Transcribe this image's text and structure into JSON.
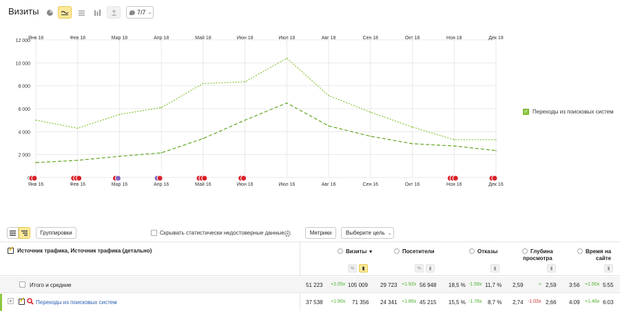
{
  "header": {
    "title": "Визиты",
    "dropdown_label": "7/7"
  },
  "chart_data": {
    "type": "line",
    "x_top": [
      "Янв 18",
      "Фев 18",
      "Мар 18",
      "Апр 18",
      "Май 18",
      "Июн 18",
      "Июл 18",
      "Авг 18",
      "Сен 18",
      "Окт 18",
      "Ноя 18",
      "Дек 18"
    ],
    "x_bottom": [
      "Янв 16",
      "Фев 16",
      "Мар 16",
      "Апр 16",
      "Май 16",
      "Июн 16",
      "Июл 16",
      "Авг 16",
      "Сен 16",
      "Окт 16",
      "Ноя 16",
      "Дек 16"
    ],
    "y_ticks": [
      "12 000",
      "10 000",
      "8 000",
      "6 000",
      "4 000",
      "2 000",
      "0"
    ],
    "ylim": [
      0,
      12000
    ],
    "series": [
      {
        "name": "Переходы из поисковых систем",
        "period": "2018",
        "color": "#8dc63f",
        "dash": "2,2",
        "values": [
          5000,
          4300,
          5500,
          6100,
          8200,
          8350,
          10400,
          7150,
          5700,
          4400,
          3300,
          3300
        ]
      },
      {
        "name": "Переходы из поисковых систем",
        "period": "2016",
        "color": "#6aab2e",
        "dash": "5,3",
        "values": [
          1300,
          1500,
          1850,
          2150,
          3400,
          5000,
          6500,
          4500,
          3600,
          2950,
          2750,
          2350
        ]
      }
    ],
    "markers": [
      {
        "month": 0,
        "colors": [
          "#d9222a",
          "#d9222a"
        ]
      },
      {
        "month": 1,
        "colors": [
          "#d9222a",
          "#d9222a",
          "#d9222a"
        ]
      },
      {
        "month": 2,
        "colors": [
          "#d9222a",
          "#8060c0"
        ]
      },
      {
        "month": 3,
        "colors": [
          "#8060c0",
          "#d9222a"
        ]
      },
      {
        "month": 4,
        "colors": [
          "#d9222a",
          "#d9222a",
          "#d9222a"
        ]
      },
      {
        "month": 5,
        "colors": [
          "#d9222a",
          "#d9222a"
        ]
      },
      {
        "month": 10,
        "colors": [
          "#d9222a",
          "#d9222a",
          "#d9222a"
        ]
      },
      {
        "month": 11,
        "colors": [
          "#d9222a",
          "#d9222a"
        ]
      }
    ],
    "legend": "Переходы из поисковых систем",
    "grid": true
  },
  "toolbar": {
    "groupings_label": "Группировки",
    "hide_unreliable_label": "Скрывать статистически недостоверные данные",
    "metrics_label": "Метрики",
    "goal_label": "Выберите цель"
  },
  "table": {
    "dimension_header": "Источник трафика, Источник трафика (детально)",
    "columns": {
      "visits": "Визиты",
      "visitors": "Посетители",
      "bounces": "Отказы",
      "depth_l1": "Глубина",
      "depth_l2": "просмотра",
      "time_l1": "Время на",
      "time_l2": "сайте"
    },
    "totals": {
      "label": "Итого и средние",
      "visits": "51 223",
      "visits_change": "+2.05x",
      "visits_prev": "105 009",
      "visitors": "29 723",
      "visitors_change": "+1.92x",
      "visitors_prev": "56 948",
      "bounces": "18,5 %",
      "bounces_change": "-1.59x",
      "bounces_prev": "11,7 %",
      "depth": "2,59",
      "depth_change": "≈",
      "depth_prev": "2,59",
      "time": "3:56",
      "time_change": "+1.50x",
      "time_prev": "5:55"
    },
    "row": {
      "label": "Переходы из поисковых систем",
      "visits": "37 538",
      "visits_change": "+1.90x",
      "visits_prev": "71 356",
      "visitors": "24 341",
      "visitors_change": "+1.86x",
      "visitors_prev": "45 215",
      "bounces": "15,5 %",
      "bounces_change": "-1.78x",
      "bounces_prev": "8,7 %",
      "depth": "2,74",
      "depth_change": "-1.03x",
      "depth_prev": "2,66",
      "time": "4:09",
      "time_change": "+1.46x",
      "time_prev": "6:03"
    }
  }
}
